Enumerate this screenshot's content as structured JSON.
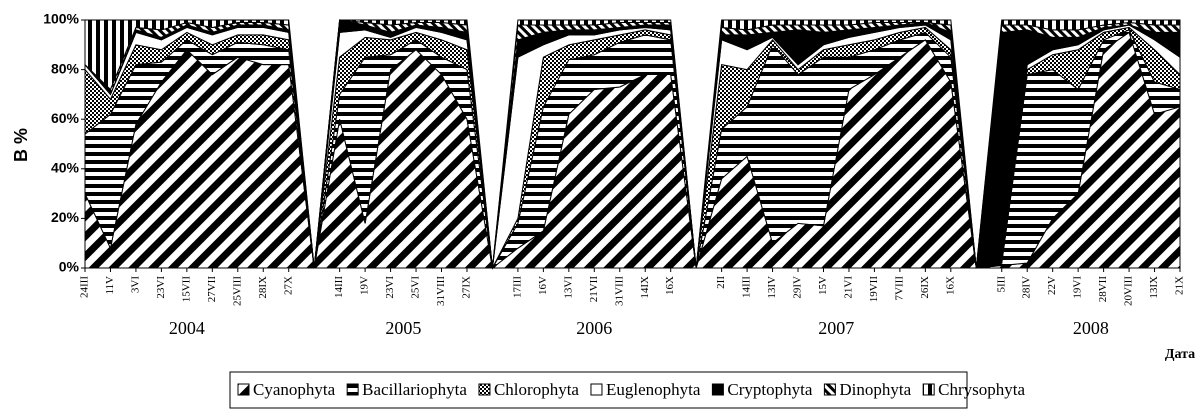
{
  "chart_data": {
    "type": "stacked-area-percent",
    "y_label": "B %",
    "x_label": "Дата",
    "categories": [
      "24III",
      "11V",
      "3VI",
      "23VI",
      "15VII",
      "27VII",
      "25VIII",
      "28IX",
      "27X",
      null,
      "14III",
      "19V",
      "23VI",
      "25VI",
      "31VIII",
      "27IX",
      null,
      "17III",
      "16V",
      "13VI",
      "21VII",
      "31VIII",
      "14IX",
      "16X",
      null,
      "2II",
      "14III",
      "13IV",
      "29IV",
      "15V",
      "21VI",
      "19VII",
      "7VIII",
      "26IX",
      "16X",
      null,
      "5III",
      "28IV",
      "22V",
      "19VI",
      "28VII",
      "20VIII",
      "13IX",
      "21X"
    ],
    "years": [
      "2004",
      "2005",
      "2006",
      "2007",
      "2008"
    ],
    "ylim": [
      0,
      100
    ],
    "yticks": [
      {
        "value": 0,
        "label": "0%"
      },
      {
        "value": 20,
        "label": "20%"
      },
      {
        "value": 40,
        "label": "40%"
      },
      {
        "value": 60,
        "label": "60%"
      },
      {
        "value": 80,
        "label": "80%"
      },
      {
        "value": 100,
        "label": "100%"
      }
    ],
    "series": [
      {
        "name": "Cyanophyta",
        "color": "#000000",
        "values": [
          30,
          8,
          58,
          75,
          88,
          78,
          85,
          82,
          82,
          0,
          60,
          18,
          80,
          88,
          78,
          60,
          0,
          8,
          15,
          62,
          72,
          73,
          78,
          78,
          0,
          36,
          45,
          10,
          18,
          17,
          72,
          78,
          85,
          92,
          75,
          0,
          1,
          2,
          20,
          30,
          88,
          95,
          62,
          65
        ]
      },
      {
        "name": "Bacillariophyta",
        "color": "#000000",
        "values": [
          24,
          54,
          24,
          8,
          4,
          8,
          6,
          8,
          6,
          0,
          10,
          67,
          6,
          4,
          7,
          20,
          0,
          10,
          50,
          22,
          14,
          18,
          16,
          14,
          0,
          20,
          20,
          80,
          60,
          68,
          13,
          10,
          7,
          3,
          10,
          0,
          1,
          76,
          60,
          42,
          4,
          1,
          13,
          7
        ]
      },
      {
        "name": "Chlorophyta",
        "color": "#000000",
        "values": [
          26,
          6,
          8,
          5,
          3,
          4,
          3,
          4,
          4,
          0,
          15,
          8,
          6,
          3,
          7,
          8,
          0,
          2,
          20,
          6,
          6,
          3,
          2,
          2,
          0,
          26,
          15,
          2,
          2,
          3,
          5,
          4,
          3,
          2,
          3,
          0,
          0,
          2,
          6,
          16,
          3,
          1,
          13,
          6
        ]
      },
      {
        "name": "Euglenophyta",
        "color": "#ffffff",
        "values": [
          2,
          2,
          5,
          4,
          2,
          4,
          3,
          3,
          3,
          0,
          10,
          3,
          1,
          2,
          3,
          4,
          0,
          65,
          5,
          4,
          2,
          2,
          1,
          2,
          0,
          10,
          8,
          1,
          2,
          2,
          3,
          3,
          2,
          1,
          4,
          0,
          0,
          2,
          2,
          2,
          1,
          1,
          4,
          7
        ]
      },
      {
        "name": "Cryptophyta",
        "color": "#000000",
        "values": [
          0,
          0,
          1,
          1,
          1,
          1,
          1,
          1,
          1,
          0,
          5,
          2,
          2,
          1,
          2,
          3,
          0,
          7,
          5,
          2,
          2,
          1,
          1,
          2,
          0,
          2,
          6,
          2,
          14,
          5,
          3,
          2,
          1,
          1,
          3,
          0,
          93,
          14,
          5,
          3,
          1,
          0,
          3,
          10
        ]
      },
      {
        "name": "Dinophyta",
        "color": "#000000",
        "values": [
          0,
          2,
          1,
          3,
          1,
          2,
          1,
          1,
          2,
          0,
          0,
          1,
          3,
          1,
          2,
          3,
          0,
          6,
          3,
          2,
          2,
          2,
          1,
          1,
          0,
          3,
          2,
          3,
          2,
          3,
          2,
          2,
          1,
          0,
          3,
          0,
          3,
          2,
          3,
          3,
          1,
          1,
          3,
          3
        ]
      },
      {
        "name": "Chrysophyta",
        "color": "#000000",
        "values": [
          18,
          28,
          3,
          4,
          1,
          3,
          1,
          1,
          2,
          0,
          0,
          1,
          2,
          1,
          1,
          2,
          0,
          2,
          2,
          2,
          2,
          1,
          1,
          1,
          0,
          3,
          4,
          2,
          2,
          2,
          2,
          1,
          1,
          1,
          2,
          0,
          2,
          2,
          4,
          4,
          2,
          1,
          2,
          2
        ]
      }
    ]
  }
}
